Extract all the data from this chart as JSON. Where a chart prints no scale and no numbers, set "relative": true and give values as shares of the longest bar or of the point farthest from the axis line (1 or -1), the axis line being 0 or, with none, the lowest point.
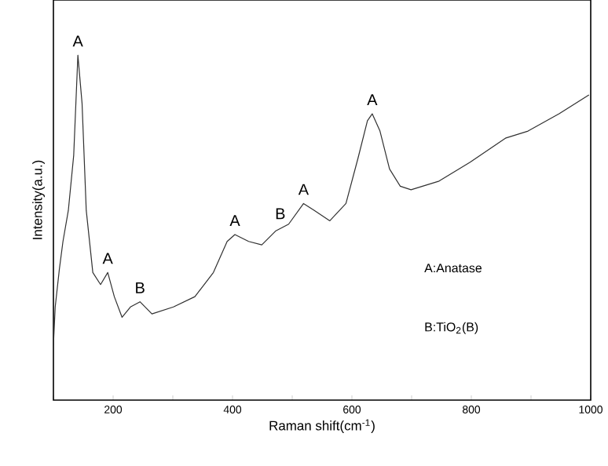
{
  "chart_data": {
    "type": "line",
    "relative": true,
    "color": "#303030",
    "xlabel": "Raman shift(cm$^{-1}$)",
    "ylabel": "Intensity(a.u.)",
    "xlim": [
      100,
      1000
    ],
    "xticks": [
      {
        "value": 100,
        "label": null
      },
      200,
      {
        "value": 300,
        "label": null
      },
      400,
      {
        "value": 500,
        "label": null
      },
      600,
      {
        "value": 700,
        "label": null
      },
      800,
      {
        "value": 900,
        "label": null
      },
      1000
    ],
    "x": [
      100,
      103,
      110,
      116,
      125,
      134,
      141,
      148,
      155,
      166,
      179,
      191,
      202,
      215,
      229,
      245,
      265,
      301,
      337,
      368,
      391,
      404,
      427,
      449,
      472,
      494,
      519,
      537,
      563,
      590,
      610,
      626,
      634,
      647,
      663,
      681,
      699,
      746,
      798,
      858,
      895,
      947,
      997
    ],
    "values": [
      0.16,
      0.27,
      0.38,
      0.46,
      0.55,
      0.71,
      1.0,
      0.86,
      0.55,
      0.37,
      0.335,
      0.37,
      0.3,
      0.24,
      0.27,
      0.285,
      0.25,
      0.27,
      0.3,
      0.37,
      0.46,
      0.48,
      0.46,
      0.45,
      0.49,
      0.51,
      0.57,
      0.55,
      0.52,
      0.57,
      0.7,
      0.81,
      0.83,
      0.78,
      0.67,
      0.62,
      0.61,
      0.635,
      0.69,
      0.76,
      0.78,
      0.83,
      0.885
    ],
    "annotations": [
      {
        "text": "A",
        "x": 141,
        "y": 1.0
      },
      {
        "text": "A",
        "x": 191,
        "y": 0.37
      },
      {
        "text": "B",
        "x": 245,
        "y": 0.285
      },
      {
        "text": "A",
        "x": 404,
        "y": 0.48
      },
      {
        "text": "B",
        "x": 480,
        "y": 0.5
      },
      {
        "text": "A",
        "x": 519,
        "y": 0.57
      },
      {
        "text": "A",
        "x": 634,
        "y": 0.83
      },
      "A:Anatase",
      "B:TiO$_{2}$(B)"
    ]
  }
}
